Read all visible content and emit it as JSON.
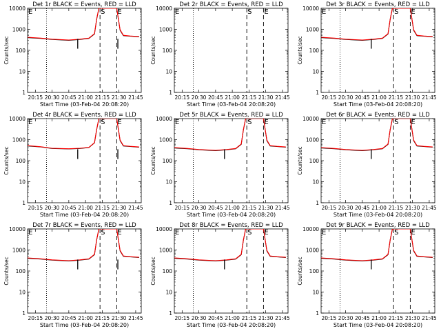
{
  "chart_data": [
    {
      "type": "line",
      "title": "Det 1r  BLACK = Events, RED = LLD",
      "xlabel": "Start Time (03-Feb-04 20:08:20)",
      "ylabel": "Counts/sec",
      "yscale": "log",
      "ylim": [
        1,
        10000
      ],
      "xticks": [
        "20:15",
        "20:30",
        "20:45",
        "21:00",
        "21:15",
        "21:30",
        "21:45"
      ],
      "yticks": [
        "1",
        "10",
        "100",
        "1000",
        "10000"
      ],
      "markers": [
        {
          "time": "20:25",
          "style": "dotted",
          "label": "E"
        },
        {
          "time": "21:13",
          "style": "dashed",
          "label": "S"
        },
        {
          "time": "21:28",
          "style": "dashed",
          "label": "E"
        }
      ],
      "black_dip": [
        {
          "time": "20:53"
        },
        {
          "time": "21:29"
        }
      ],
      "colors": {
        "events": "#000000",
        "lld": "#ff0000"
      },
      "series": [
        {
          "name": "Events",
          "color": "#000000",
          "times": [
            "20:08",
            "20:20",
            "20:30",
            "20:45",
            "20:55",
            "21:03",
            "21:08",
            "21:10",
            "21:12",
            "21:28",
            "21:31",
            "21:34",
            "21:40",
            "21:48"
          ],
          "values": [
            400,
            370,
            330,
            300,
            330,
            370,
            600,
            3000,
            10000,
            10000,
            900,
            500,
            470,
            440
          ]
        },
        {
          "name": "LLD",
          "color": "#ff0000",
          "times": [
            "20:08",
            "20:20",
            "20:30",
            "20:45",
            "20:55",
            "21:03",
            "21:08",
            "21:10",
            "21:12",
            "21:28",
            "21:31",
            "21:34",
            "21:40",
            "21:48"
          ],
          "values": [
            420,
            380,
            340,
            310,
            340,
            380,
            620,
            3100,
            10000,
            10000,
            950,
            520,
            480,
            450
          ]
        }
      ]
    },
    {
      "type": "line",
      "title": "Det 2r  BLACK = Events, RED = LLD",
      "xlabel": "Start Time (03-Feb-04 20:08:20)",
      "ylabel": "Counts/sec",
      "yscale": "log",
      "ylim": [
        1,
        10000
      ],
      "xticks": [
        "20:15",
        "20:30",
        "20:45",
        "21:00",
        "21:15",
        "21:30",
        "21:45"
      ],
      "yticks": [
        "1",
        "10",
        "100",
        "1000",
        "10000"
      ],
      "markers": [
        {
          "time": "20:25",
          "style": "dotted",
          "label": "E"
        },
        {
          "time": "21:13",
          "style": "dashed",
          "label": "S"
        },
        {
          "time": "21:28",
          "style": "dashed",
          "label": "E"
        }
      ],
      "black_dip": [],
      "colors": {
        "events": "#000000",
        "lld": "#ff0000"
      },
      "series": []
    },
    {
      "type": "line",
      "title": "Det 3r  BLACK = Events, RED = LLD",
      "xlabel": "Start Time (03-Feb-04 20:08:20)",
      "ylabel": "Counts/sec",
      "yscale": "log",
      "ylim": [
        1,
        10000
      ],
      "xticks": [
        "20:15",
        "20:30",
        "20:45",
        "21:00",
        "21:15",
        "21:30",
        "21:45"
      ],
      "yticks": [
        "1",
        "10",
        "100",
        "1000",
        "10000"
      ],
      "markers": [
        {
          "time": "20:25",
          "style": "dotted",
          "label": "E"
        },
        {
          "time": "21:13",
          "style": "dashed",
          "label": "S"
        },
        {
          "time": "21:28",
          "style": "dashed",
          "label": "E"
        }
      ],
      "black_dip": [
        {
          "time": "20:53"
        }
      ],
      "colors": {
        "events": "#000000",
        "lld": "#ff0000"
      },
      "series": [
        {
          "name": "Events",
          "color": "#000000",
          "times": [
            "20:08",
            "20:20",
            "20:30",
            "20:45",
            "20:55",
            "21:03",
            "21:08",
            "21:10",
            "21:12",
            "21:28",
            "21:31",
            "21:34",
            "21:40",
            "21:48"
          ],
          "values": [
            400,
            370,
            330,
            300,
            330,
            370,
            600,
            3000,
            10000,
            10000,
            900,
            500,
            470,
            440
          ]
        },
        {
          "name": "LLD",
          "color": "#ff0000",
          "times": [
            "20:08",
            "20:20",
            "20:30",
            "20:45",
            "20:55",
            "21:03",
            "21:08",
            "21:10",
            "21:12",
            "21:28",
            "21:31",
            "21:34",
            "21:40",
            "21:48"
          ],
          "values": [
            420,
            380,
            340,
            310,
            340,
            380,
            620,
            3100,
            10000,
            10000,
            950,
            520,
            480,
            450
          ]
        }
      ]
    },
    {
      "type": "line",
      "title": "Det 4r  BLACK = Events, RED = LLD",
      "xlabel": "Start Time (03-Feb-04 20:08:20)",
      "ylabel": "Counts/sec",
      "yscale": "log",
      "ylim": [
        1,
        10000
      ],
      "xticks": [
        "20:15",
        "20:30",
        "20:45",
        "21:00",
        "21:15",
        "21:30",
        "21:45"
      ],
      "yticks": [
        "1",
        "10",
        "100",
        "1000",
        "10000"
      ],
      "markers": [
        {
          "time": "20:25",
          "style": "dotted",
          "label": "E"
        },
        {
          "time": "21:13",
          "style": "dashed",
          "label": "S"
        },
        {
          "time": "21:28",
          "style": "dashed",
          "label": "E"
        }
      ],
      "black_dip": [
        {
          "time": "20:53"
        },
        {
          "time": "21:29"
        }
      ],
      "colors": {
        "events": "#000000",
        "lld": "#ff0000"
      },
      "series": [
        {
          "name": "Events",
          "color": "#000000",
          "times": [
            "20:08",
            "20:20",
            "20:30",
            "20:45",
            "20:55",
            "21:03",
            "21:08",
            "21:10",
            "21:12",
            "21:28",
            "21:31",
            "21:34",
            "21:40",
            "21:48"
          ],
          "values": [
            500,
            450,
            380,
            360,
            380,
            420,
            700,
            3000,
            10000,
            10000,
            900,
            500,
            470,
            440
          ]
        },
        {
          "name": "LLD",
          "color": "#ff0000",
          "times": [
            "20:08",
            "20:20",
            "20:30",
            "20:45",
            "20:55",
            "21:03",
            "21:08",
            "21:10",
            "21:12",
            "21:28",
            "21:31",
            "21:34",
            "21:40",
            "21:48"
          ],
          "values": [
            520,
            460,
            390,
            370,
            390,
            430,
            720,
            3100,
            10000,
            10000,
            950,
            520,
            480,
            450
          ]
        }
      ]
    },
    {
      "type": "line",
      "title": "Det 5r  BLACK = Events, RED = LLD",
      "xlabel": "Start Time (03-Feb-04 20:08:20)",
      "ylabel": "Counts/sec",
      "yscale": "log",
      "ylim": [
        1,
        10000
      ],
      "xticks": [
        "20:15",
        "20:30",
        "20:45",
        "21:00",
        "21:15",
        "21:30",
        "21:45"
      ],
      "yticks": [
        "1",
        "10",
        "100",
        "1000",
        "10000"
      ],
      "markers": [
        {
          "time": "20:25",
          "style": "dotted",
          "label": "E"
        },
        {
          "time": "21:13",
          "style": "dashed",
          "label": "S"
        },
        {
          "time": "21:28",
          "style": "dashed",
          "label": "E"
        }
      ],
      "black_dip": [
        {
          "time": "20:53"
        }
      ],
      "colors": {
        "events": "#000000",
        "lld": "#ff0000"
      },
      "series": [
        {
          "name": "Events",
          "color": "#000000",
          "times": [
            "20:08",
            "20:20",
            "20:30",
            "20:45",
            "20:55",
            "21:03",
            "21:08",
            "21:10",
            "21:12",
            "21:28",
            "21:31",
            "21:34",
            "21:40",
            "21:48"
          ],
          "values": [
            400,
            370,
            330,
            300,
            330,
            370,
            600,
            3000,
            10000,
            10000,
            900,
            500,
            470,
            440
          ]
        },
        {
          "name": "LLD",
          "color": "#ff0000",
          "times": [
            "20:08",
            "20:20",
            "20:30",
            "20:45",
            "20:55",
            "21:03",
            "21:08",
            "21:10",
            "21:12",
            "21:28",
            "21:31",
            "21:34",
            "21:40",
            "21:48"
          ],
          "values": [
            420,
            380,
            340,
            310,
            340,
            380,
            620,
            3100,
            10000,
            10000,
            950,
            520,
            480,
            450
          ]
        }
      ]
    },
    {
      "type": "line",
      "title": "Det 6r  BLACK = Events, RED = LLD",
      "xlabel": "Start Time (03-Feb-04 20:08:20)",
      "ylabel": "Counts/sec",
      "yscale": "log",
      "ylim": [
        1,
        10000
      ],
      "xticks": [
        "20:15",
        "20:30",
        "20:45",
        "21:00",
        "21:15",
        "21:30",
        "21:45"
      ],
      "yticks": [
        "1",
        "10",
        "100",
        "1000",
        "10000"
      ],
      "markers": [
        {
          "time": "20:25",
          "style": "dotted",
          "label": "E"
        },
        {
          "time": "21:13",
          "style": "dashed",
          "label": "S"
        },
        {
          "time": "21:28",
          "style": "dashed",
          "label": "E"
        }
      ],
      "black_dip": [
        {
          "time": "20:53"
        }
      ],
      "colors": {
        "events": "#000000",
        "lld": "#ff0000"
      },
      "series": [
        {
          "name": "Events",
          "color": "#000000",
          "times": [
            "20:08",
            "20:20",
            "20:30",
            "20:45",
            "20:55",
            "21:03",
            "21:08",
            "21:10",
            "21:12",
            "21:28",
            "21:31",
            "21:34",
            "21:40",
            "21:48"
          ],
          "values": [
            400,
            370,
            330,
            300,
            330,
            370,
            600,
            3000,
            10000,
            10000,
            900,
            500,
            470,
            440
          ]
        },
        {
          "name": "LLD",
          "color": "#ff0000",
          "times": [
            "20:08",
            "20:20",
            "20:30",
            "20:45",
            "20:55",
            "21:03",
            "21:08",
            "21:10",
            "21:12",
            "21:28",
            "21:31",
            "21:34",
            "21:40",
            "21:48"
          ],
          "values": [
            420,
            380,
            340,
            310,
            340,
            380,
            620,
            3100,
            10000,
            10000,
            950,
            520,
            480,
            450
          ]
        }
      ]
    },
    {
      "type": "line",
      "title": "Det 7r  BLACK = Events, RED = LLD",
      "xlabel": "Start Time (03-Feb-04 20:08:20)",
      "ylabel": "Counts/sec",
      "yscale": "log",
      "ylim": [
        1,
        10000
      ],
      "xticks": [
        "20:15",
        "20:30",
        "20:45",
        "21:00",
        "21:15",
        "21:30",
        "21:45"
      ],
      "yticks": [
        "1",
        "10",
        "100",
        "1000",
        "10000"
      ],
      "markers": [
        {
          "time": "20:25",
          "style": "dotted",
          "label": "E"
        },
        {
          "time": "21:13",
          "style": "dashed",
          "label": "S"
        },
        {
          "time": "21:28",
          "style": "dashed",
          "label": "E"
        }
      ],
      "black_dip": [
        {
          "time": "20:53"
        },
        {
          "time": "21:29"
        }
      ],
      "colors": {
        "events": "#000000",
        "lld": "#ff0000"
      },
      "series": [
        {
          "name": "Events",
          "color": "#000000",
          "times": [
            "20:08",
            "20:20",
            "20:30",
            "20:45",
            "20:55",
            "21:03",
            "21:08",
            "21:10",
            "21:12",
            "21:28",
            "21:31",
            "21:34",
            "21:40",
            "21:48"
          ],
          "values": [
            400,
            370,
            330,
            300,
            330,
            370,
            600,
            3000,
            10000,
            10000,
            900,
            500,
            470,
            440
          ]
        },
        {
          "name": "LLD",
          "color": "#ff0000",
          "times": [
            "20:08",
            "20:20",
            "20:30",
            "20:45",
            "20:55",
            "21:03",
            "21:08",
            "21:10",
            "21:12",
            "21:28",
            "21:31",
            "21:34",
            "21:40",
            "21:48"
          ],
          "values": [
            420,
            380,
            340,
            310,
            340,
            380,
            620,
            3100,
            10000,
            10000,
            950,
            520,
            480,
            450
          ]
        }
      ]
    },
    {
      "type": "line",
      "title": "Det 8r  BLACK = Events, RED = LLD",
      "xlabel": "Start Time (03-Feb-04 20:08:20)",
      "ylabel": "Counts/sec",
      "yscale": "log",
      "ylim": [
        1,
        10000
      ],
      "xticks": [
        "20:15",
        "20:30",
        "20:45",
        "21:00",
        "21:15",
        "21:30",
        "21:45"
      ],
      "yticks": [
        "1",
        "10",
        "100",
        "1000",
        "10000"
      ],
      "markers": [
        {
          "time": "20:25",
          "style": "dotted",
          "label": "E"
        },
        {
          "time": "21:13",
          "style": "dashed",
          "label": "S"
        },
        {
          "time": "21:28",
          "style": "dashed",
          "label": "E"
        }
      ],
      "black_dip": [
        {
          "time": "20:53"
        }
      ],
      "colors": {
        "events": "#000000",
        "lld": "#ff0000"
      },
      "series": [
        {
          "name": "Events",
          "color": "#000000",
          "times": [
            "20:08",
            "20:20",
            "20:30",
            "20:45",
            "20:55",
            "21:03",
            "21:08",
            "21:10",
            "21:12",
            "21:28",
            "21:31",
            "21:34",
            "21:40",
            "21:48"
          ],
          "values": [
            400,
            370,
            330,
            300,
            330,
            370,
            600,
            3000,
            10000,
            10000,
            900,
            500,
            470,
            440
          ]
        },
        {
          "name": "LLD",
          "color": "#ff0000",
          "times": [
            "20:08",
            "20:20",
            "20:30",
            "20:45",
            "20:55",
            "21:03",
            "21:08",
            "21:10",
            "21:12",
            "21:28",
            "21:31",
            "21:34",
            "21:40",
            "21:48"
          ],
          "values": [
            420,
            380,
            340,
            310,
            340,
            380,
            620,
            3100,
            10000,
            10000,
            950,
            520,
            480,
            450
          ]
        }
      ]
    },
    {
      "type": "line",
      "title": "Det 9r  BLACK = Events, RED = LLD",
      "xlabel": "Start Time (03-Feb-04 20:08:20)",
      "ylabel": "Counts/sec",
      "yscale": "log",
      "ylim": [
        1,
        10000
      ],
      "xticks": [
        "20:15",
        "20:30",
        "20:45",
        "21:00",
        "21:15",
        "21:30",
        "21:45"
      ],
      "yticks": [
        "1",
        "10",
        "100",
        "1000",
        "10000"
      ],
      "markers": [
        {
          "time": "20:25",
          "style": "dotted",
          "label": "E"
        },
        {
          "time": "21:13",
          "style": "dashed",
          "label": "S"
        },
        {
          "time": "21:28",
          "style": "dashed",
          "label": "E"
        }
      ],
      "black_dip": [
        {
          "time": "20:53"
        }
      ],
      "colors": {
        "events": "#000000",
        "lld": "#ff0000"
      },
      "series": [
        {
          "name": "Events",
          "color": "#000000",
          "times": [
            "20:08",
            "20:20",
            "20:30",
            "20:45",
            "20:55",
            "21:03",
            "21:08",
            "21:10",
            "21:12",
            "21:28",
            "21:31",
            "21:34",
            "21:40",
            "21:48"
          ],
          "values": [
            400,
            370,
            330,
            300,
            330,
            370,
            600,
            3000,
            10000,
            10000,
            900,
            500,
            470,
            440
          ]
        },
        {
          "name": "LLD",
          "color": "#ff0000",
          "times": [
            "20:08",
            "20:20",
            "20:30",
            "20:45",
            "20:55",
            "21:03",
            "21:08",
            "21:10",
            "21:12",
            "21:28",
            "21:31",
            "21:34",
            "21:40",
            "21:48"
          ],
          "values": [
            420,
            380,
            340,
            310,
            340,
            380,
            620,
            3100,
            10000,
            10000,
            950,
            520,
            480,
            450
          ]
        }
      ]
    }
  ]
}
